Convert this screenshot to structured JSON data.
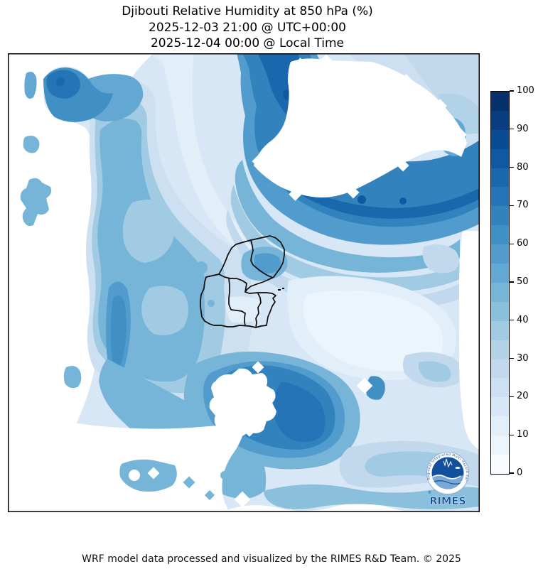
{
  "title": {
    "line1": "Djibouti Relative Humidity at 850 hPa (%)",
    "line2": "2025-12-03 21:00 @ UTC+00:00",
    "line3": "2025-12-04 00:00 @ Local Time"
  },
  "colorbar": {
    "ticks": [
      "0",
      "10",
      "20",
      "30",
      "40",
      "50",
      "60",
      "70",
      "80",
      "90",
      "100"
    ],
    "level_step": 5,
    "value_range": [
      0,
      100
    ],
    "colormap": "Blues",
    "colors": [
      "#f7fbff",
      "#ecf4fc",
      "#e2eef8",
      "#d8e7f5",
      "#cde0f1",
      "#c2d9ed",
      "#b1d2e7",
      "#a0cbe2",
      "#8bc0dd",
      "#76b4d8",
      "#62a8d3",
      "#519ccc",
      "#4090c5",
      "#3282be",
      "#2474b7",
      "#1967ad",
      "#0f59a3",
      "#084c94",
      "#083e80",
      "#08306b"
    ]
  },
  "logo": {
    "name": "RIMES",
    "arc_text": "Regional Integrated Multi-Hazard Early Warning System",
    "badge_color": "#11519b",
    "text_color": "#124c92"
  },
  "footer": {
    "text": "WRF model data processed and visualized by the RIMES R&D Team. © 2025"
  },
  "chart_data": {
    "type": "heatmap",
    "subtype": "filled-contour-map",
    "title": "Djibouti Relative Humidity at 850 hPa (%)",
    "variable": "Relative Humidity",
    "pressure_level": "850 hPa",
    "units": "%",
    "contour_interval": 5,
    "value_range": [
      0,
      100
    ],
    "colormap": "Blues",
    "legend_position": "right-colorbar",
    "features": [
      {
        "area": "northeast band (Gulf of Aden coast)",
        "value_range": [
          70,
          90
        ]
      },
      {
        "area": "top-left wedge",
        "value_range": [
          60,
          80
        ]
      },
      {
        "area": "west-central mass",
        "value_range": [
          40,
          55
        ]
      },
      {
        "area": "southwest vertical ridge",
        "value_range": [
          55,
          65
        ]
      },
      {
        "area": "south-central blob around masked cells",
        "value_range": [
          60,
          75
        ]
      },
      {
        "area": "north Djibouti (Obock) spot",
        "value_range": [
          45,
          60
        ]
      },
      {
        "area": "east of Djibouti plains",
        "value_range": [
          5,
          20
        ]
      },
      {
        "area": "white regions",
        "value_range": [
          0,
          5
        ]
      }
    ]
  }
}
